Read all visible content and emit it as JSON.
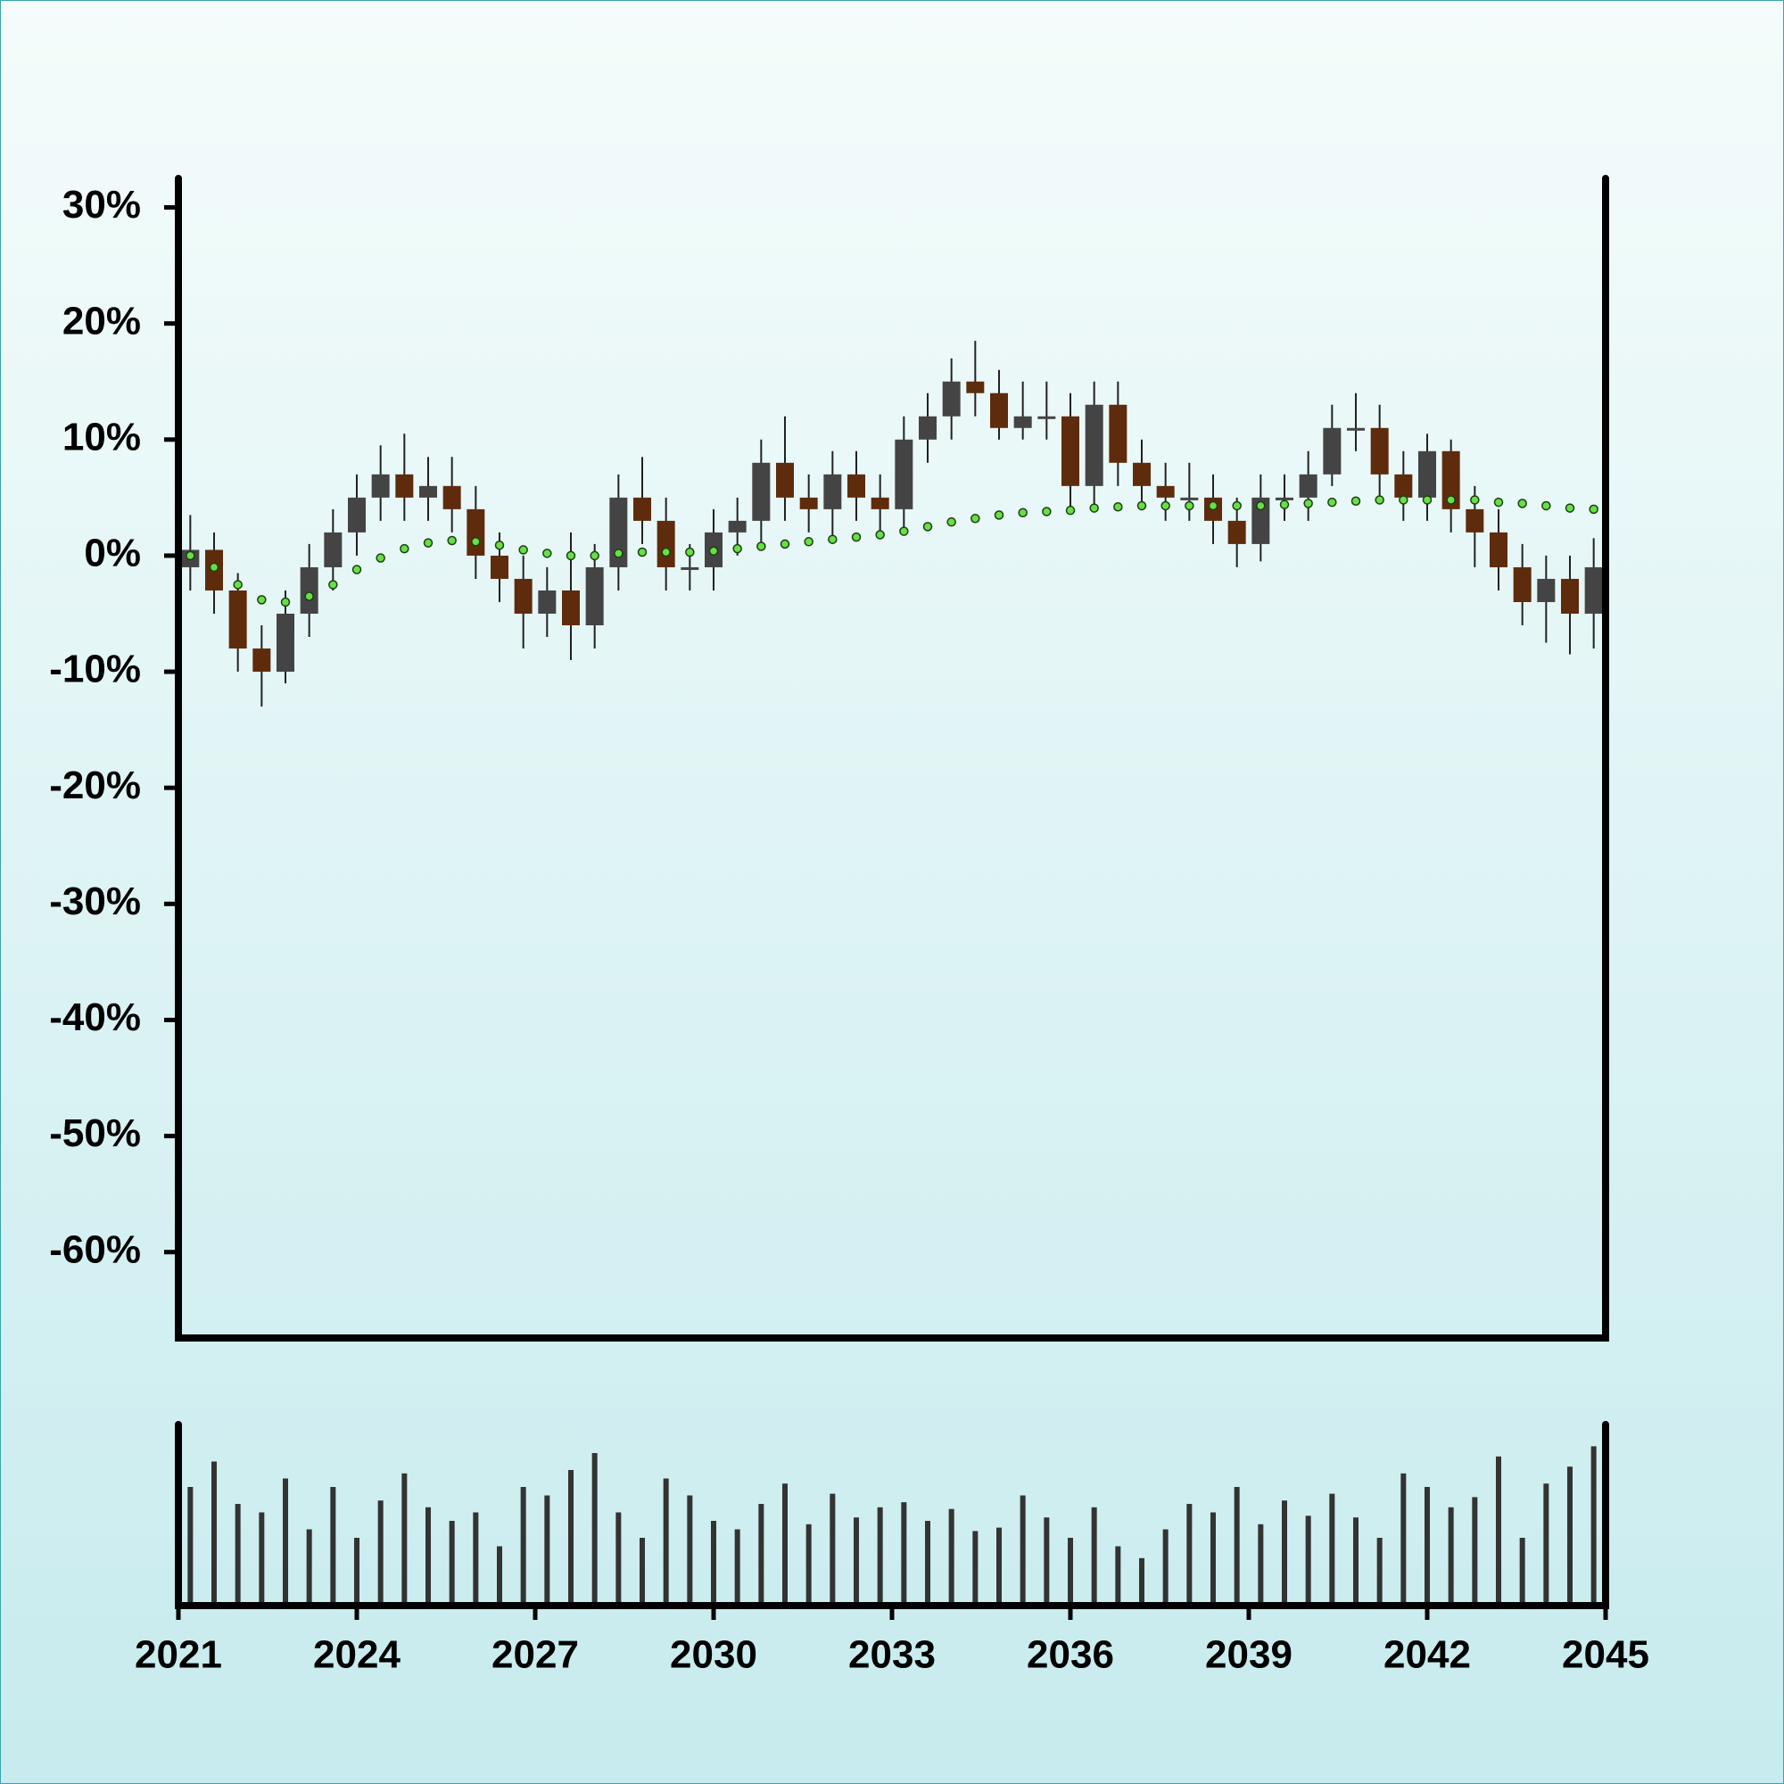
{
  "chart_data": {
    "type": "candlestick",
    "x": [
      2021.2,
      2021.6,
      2022.0,
      2022.4,
      2022.8,
      2023.2,
      2023.6,
      2024.0,
      2024.4,
      2024.8,
      2025.2,
      2025.6,
      2026.0,
      2026.4,
      2026.8,
      2027.2,
      2027.6,
      2028.0,
      2028.4,
      2028.8,
      2029.2,
      2029.6,
      2030.0,
      2030.4,
      2030.8,
      2031.2,
      2031.6,
      2032.0,
      2032.4,
      2032.8,
      2033.2,
      2033.6,
      2034.0,
      2034.4,
      2034.8,
      2035.2,
      2035.6,
      2036.0,
      2036.4,
      2036.8,
      2037.2,
      2037.6,
      2038.0,
      2038.4,
      2038.8,
      2039.2,
      2039.6,
      2040.0,
      2040.4,
      2040.8,
      2041.2,
      2041.6,
      2042.0,
      2042.4,
      2042.8,
      2043.2,
      2043.6,
      2044.0,
      2044.4,
      2044.8
    ],
    "open": [
      -1,
      0.5,
      -3,
      -8,
      -10,
      -5,
      -1,
      2,
      5,
      7,
      5,
      6,
      4,
      0,
      -2,
      -5,
      -3,
      -6,
      -1,
      5,
      3,
      -1,
      -1,
      2,
      3,
      8,
      5,
      4,
      7,
      5,
      4,
      10,
      12,
      15,
      14,
      11,
      12,
      12,
      6,
      13,
      8,
      6,
      5,
      5,
      3,
      1,
      5,
      5,
      7,
      11,
      11,
      7,
      5,
      9,
      4,
      2,
      -1,
      -4,
      -2,
      -5
    ],
    "high": [
      3.5,
      2,
      -1.5,
      -6,
      -3,
      1,
      4,
      7,
      9.5,
      10.5,
      8.5,
      8.5,
      6,
      2,
      0,
      -1,
      2,
      1,
      7,
      8.5,
      5,
      1,
      4,
      5,
      10,
      12,
      7,
      9,
      9,
      7,
      12,
      14,
      17,
      18.5,
      16,
      15,
      15,
      14,
      15,
      15,
      10,
      8,
      8,
      7,
      5,
      7,
      7,
      9,
      13,
      14,
      13,
      9,
      10.5,
      10,
      6,
      4,
      1,
      0,
      0,
      1.5
    ],
    "low": [
      -3,
      -5,
      -10,
      -13,
      -11,
      -7,
      -3,
      0,
      3,
      3,
      3,
      2,
      -2,
      -4,
      -8,
      -7,
      -9,
      -8,
      -3,
      1,
      -3,
      -3,
      -3,
      0,
      1,
      3,
      2,
      1,
      3,
      2,
      2,
      8,
      10,
      12,
      10,
      10,
      10,
      4,
      4,
      6,
      4,
      3,
      3,
      1,
      -1,
      -0.5,
      3,
      3,
      6,
      9,
      5,
      3,
      3,
      2,
      -1,
      -3,
      -6,
      -7.5,
      -8.5,
      -8
    ],
    "close": [
      0.5,
      -3,
      -8,
      -10,
      -5,
      -1,
      2,
      5,
      7,
      5,
      6,
      4,
      0,
      -2,
      -5,
      -3,
      -6,
      -1,
      5,
      3,
      -1,
      -1,
      2,
      3,
      8,
      5,
      4,
      7,
      5,
      4,
      10,
      12,
      15,
      14,
      11,
      12,
      12,
      6,
      13,
      8,
      6,
      5,
      5,
      3,
      1,
      5,
      5,
      7,
      11,
      11,
      7,
      5,
      9,
      4,
      2,
      -1,
      -4,
      -2,
      -5,
      -1
    ],
    "up_color": "#444444",
    "down_color": "#5e2c0c",
    "ma": {
      "color": "#66e044",
      "values": [
        0,
        -1,
        -2.5,
        -3.8,
        -4,
        -3.5,
        -2.5,
        -1.2,
        -0.2,
        0.6,
        1.1,
        1.3,
        1.2,
        0.9,
        0.5,
        0.2,
        0,
        0,
        0.2,
        0.3,
        0.3,
        0.3,
        0.4,
        0.6,
        0.8,
        1.0,
        1.2,
        1.4,
        1.6,
        1.8,
        2.1,
        2.5,
        2.9,
        3.2,
        3.5,
        3.7,
        3.8,
        3.9,
        4.1,
        4.2,
        4.3,
        4.3,
        4.3,
        4.3,
        4.3,
        4.3,
        4.4,
        4.5,
        4.6,
        4.7,
        4.8,
        4.8,
        4.8,
        4.8,
        4.8,
        4.6,
        4.5,
        4.3,
        4.1,
        4.0
      ]
    },
    "volume": {
      "color": "#333333",
      "ylim": [
        0,
        100
      ],
      "values": [
        70,
        85,
        60,
        55,
        75,
        45,
        70,
        40,
        62,
        78,
        58,
        50,
        55,
        35,
        70,
        65,
        80,
        90,
        55,
        40,
        75,
        65,
        50,
        45,
        60,
        72,
        48,
        66,
        52,
        58,
        61,
        50,
        57,
        44,
        46,
        65,
        52,
        40,
        58,
        35,
        28,
        45,
        60,
        55,
        70,
        48,
        62,
        53,
        66,
        52,
        40,
        78,
        70,
        58,
        64,
        88,
        40,
        72,
        82,
        94
      ]
    },
    "xlim": [
      2021,
      2045
    ],
    "xticks": [
      2021,
      2024,
      2027,
      2030,
      2033,
      2036,
      2039,
      2042,
      2045
    ],
    "ylim": [
      -67.4,
      32.5
    ],
    "yticks": [
      {
        "value": -60,
        "label": "-60%"
      },
      {
        "value": -50,
        "label": "-50%"
      },
      {
        "value": -40,
        "label": "-40%"
      },
      {
        "value": -30,
        "label": "-30%"
      },
      {
        "value": -20,
        "label": "-20%"
      },
      {
        "value": -10,
        "label": "-10%"
      },
      {
        "value": 0,
        "label": "0%"
      },
      {
        "value": 10,
        "label": "10%"
      },
      {
        "value": 20,
        "label": "20%"
      },
      {
        "value": 30,
        "label": "30%"
      }
    ]
  }
}
